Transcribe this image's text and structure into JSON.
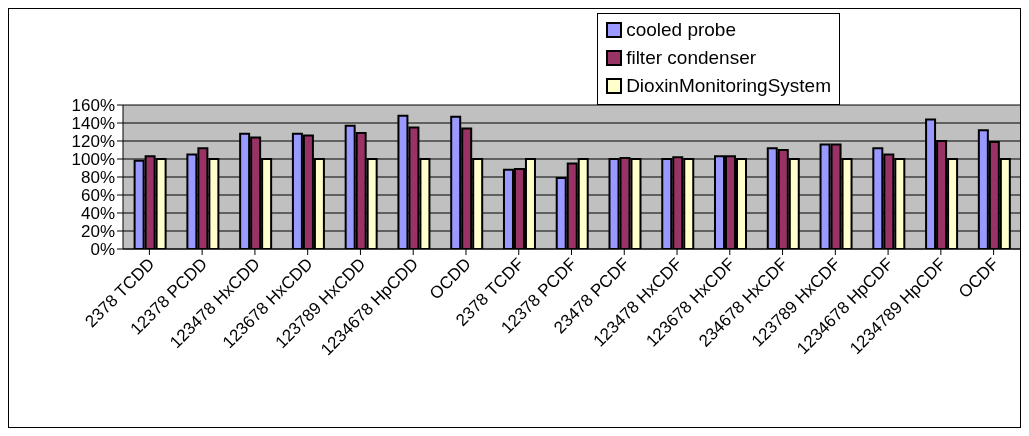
{
  "chart_data": {
    "type": "bar",
    "categories": [
      "2378 TCDD",
      "12378 PCDD",
      "123478 HxCDD",
      "123678 HxCDD",
      "123789 HxCDD",
      "1234678 HpCDD",
      "OCDD",
      "2378 TCDF",
      "12378 PCDF",
      "23478 PCDF",
      "123478 HxCDF",
      "123678 HxCDF",
      "234678 HxCDF",
      "123789 HxCDF",
      "1234678 HpCDF",
      "1234789 HpCDF",
      "OCDF"
    ],
    "series": [
      {
        "name": "cooled probe",
        "color": "#9999ff",
        "values": [
          98,
          105,
          128,
          128,
          137,
          148,
          147,
          88,
          79,
          100,
          100,
          103,
          112,
          116,
          112,
          144,
          132
        ]
      },
      {
        "name": "filter condenser",
        "color": "#993366",
        "values": [
          103,
          112,
          124,
          126,
          129,
          135,
          134,
          89,
          95,
          101,
          102,
          103,
          110,
          116,
          105,
          120,
          119
        ]
      },
      {
        "name": "DioxinMonitoringSystem",
        "color": "#ffffcc",
        "values": [
          100,
          100,
          100,
          100,
          100,
          100,
          100,
          100,
          100,
          100,
          100,
          100,
          100,
          100,
          100,
          100,
          100
        ]
      }
    ],
    "ylim": [
      0,
      160
    ],
    "yticks": [
      {
        "value": 0,
        "label": "0%"
      },
      {
        "value": 20,
        "label": "20%"
      },
      {
        "value": 40,
        "label": "40%"
      },
      {
        "value": 60,
        "label": "60%"
      },
      {
        "value": 80,
        "label": "80%"
      },
      {
        "value": 100,
        "label": "100%"
      },
      {
        "value": 120,
        "label": "120%"
      },
      {
        "value": 140,
        "label": "140%"
      },
      {
        "value": 160,
        "label": "160%"
      }
    ],
    "grid": "y",
    "legend": "top right"
  }
}
